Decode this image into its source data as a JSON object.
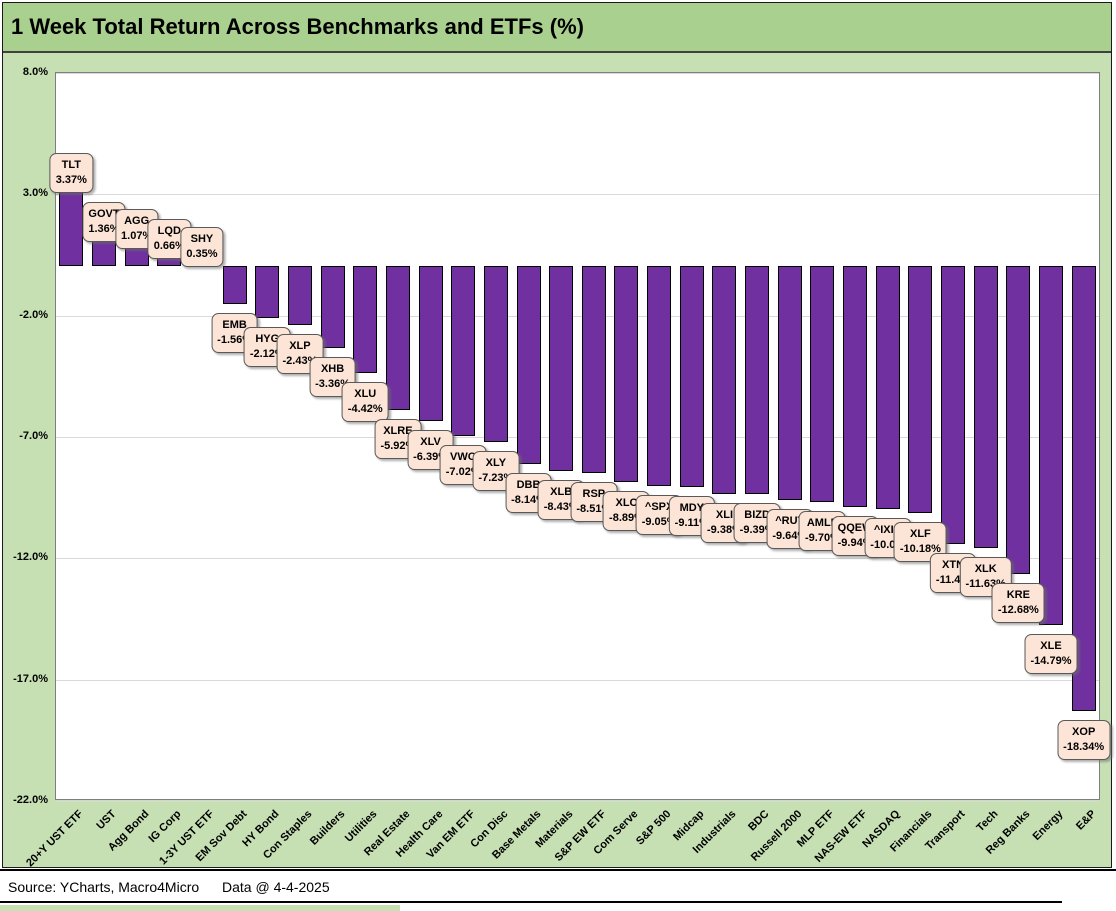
{
  "title": "1 Week Total Return Across Benchmarks and ETFs (%)",
  "footer": {
    "source": "Source: YCharts, Macro4Micro",
    "data_date": "Data @ 4-4-2025"
  },
  "colors": {
    "title_band_bg": "#a9d08e",
    "chart_area_bg": "#c6e0b4",
    "plot_bg": "#ffffff",
    "plot_border": "#7f7f7f",
    "gridline": "#d9d9d9",
    "bar_fill": "#7030a0",
    "bar_border": "#000000",
    "label_box_bg": "#fce4d6",
    "label_box_border": "#595959",
    "text": "#000000"
  },
  "chart_data": {
    "type": "bar",
    "title": "1 Week Total Return Across Benchmarks and ETFs (%)",
    "xlabel": "",
    "ylabel": "",
    "ylim": [
      -22,
      8
    ],
    "yticks": [
      8,
      3,
      -2,
      -7,
      -12,
      -17,
      -22
    ],
    "ytick_labels": [
      "8.0%",
      "3.0%",
      "-2.0%",
      "-7.0%",
      "-12.0%",
      "-17.0%",
      "-22.0%"
    ],
    "grid": true,
    "legend": false,
    "categories": [
      "20+Y UST ETF",
      "UST",
      "Agg Bond",
      "IG Corp",
      "1-3Y UST ETF",
      "EM Sov Debt",
      "HY Bond",
      "Con Staples",
      "Builders",
      "Utilities",
      "Real Estate",
      "Health Care",
      "Van EM ETF",
      "Con Disc",
      "Base Metals",
      "Materials",
      "S&P EW ETF",
      "Com Serve",
      "S&P 500",
      "Midcap",
      "Industrials",
      "BDC",
      "Russell 2000",
      "MLP ETF",
      "NAS-EW ETF",
      "NASDAQ",
      "Financials",
      "Transport",
      "Tech",
      "Reg Banks",
      "Energy",
      "E&P"
    ],
    "series": [
      {
        "name": "1 Week Total Return (%)",
        "values": [
          3.37,
          1.36,
          1.07,
          0.66,
          0.35,
          -1.56,
          -2.12,
          -2.43,
          -3.36,
          -4.42,
          -5.92,
          -6.39,
          -7.02,
          -7.23,
          -8.14,
          -8.43,
          -8.51,
          -8.89,
          -9.05,
          -9.11,
          -9.38,
          -9.39,
          -9.64,
          -9.7,
          -9.94,
          -10.02,
          -10.18,
          -11.45,
          -11.63,
          -12.68,
          -14.79,
          -18.34
        ]
      }
    ],
    "point_labels": [
      {
        "ticker": "TLT",
        "value": "3.37%"
      },
      {
        "ticker": "GOVT",
        "value": "1.36%"
      },
      {
        "ticker": "AGG",
        "value": "1.07%"
      },
      {
        "ticker": "LQD",
        "value": "0.66%"
      },
      {
        "ticker": "SHY",
        "value": "0.35%"
      },
      {
        "ticker": "EMB",
        "value": "-1.56%"
      },
      {
        "ticker": "HYG",
        "value": "-2.12%"
      },
      {
        "ticker": "XLP",
        "value": "-2.43%"
      },
      {
        "ticker": "XHB",
        "value": "-3.36%"
      },
      {
        "ticker": "XLU",
        "value": "-4.42%"
      },
      {
        "ticker": "XLRE",
        "value": "-5.92%"
      },
      {
        "ticker": "XLV",
        "value": "-6.39%"
      },
      {
        "ticker": "VWO",
        "value": "-7.02%"
      },
      {
        "ticker": "XLY",
        "value": "-7.23%"
      },
      {
        "ticker": "DBB",
        "value": "-8.14%"
      },
      {
        "ticker": "XLB",
        "value": "-8.43%"
      },
      {
        "ticker": "RSP",
        "value": "-8.51%"
      },
      {
        "ticker": "XLC",
        "value": "-8.89%"
      },
      {
        "ticker": "^SPX",
        "value": "-9.05%"
      },
      {
        "ticker": "MDY",
        "value": "-9.11%"
      },
      {
        "ticker": "XLI",
        "value": "-9.38%"
      },
      {
        "ticker": "BIZD",
        "value": "-9.39%"
      },
      {
        "ticker": "^RUT",
        "value": "-9.64%"
      },
      {
        "ticker": "AMLP",
        "value": "-9.70%"
      },
      {
        "ticker": "QQEW",
        "value": "-9.94%"
      },
      {
        "ticker": "^IXIC",
        "value": "-10.0%"
      },
      {
        "ticker": "XLF",
        "value": "-10.18%"
      },
      {
        "ticker": "XTN",
        "value": "-11.4%"
      },
      {
        "ticker": "XLK",
        "value": "-11.63%"
      },
      {
        "ticker": "KRE",
        "value": "-12.68%"
      },
      {
        "ticker": "XLE",
        "value": "-14.79%"
      },
      {
        "ticker": "XOP",
        "value": "-18.34%"
      }
    ]
  }
}
